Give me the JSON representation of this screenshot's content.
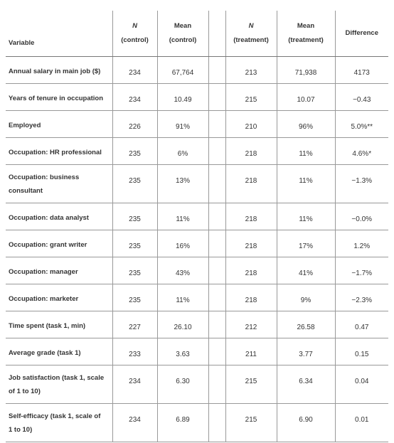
{
  "table": {
    "header": [
      [
        "Variable"
      ],
      [
        "N",
        "(control)"
      ],
      [
        "Mean",
        "(control)"
      ],
      [
        "N",
        "(treatment)"
      ],
      [
        "Mean",
        "(treatment)"
      ],
      [
        "Difference"
      ]
    ],
    "rows": [
      [
        [
          "Annual salary in main job ($)"
        ],
        "234",
        "67,764",
        "213",
        "71,938",
        "4173"
      ],
      [
        [
          "Years of tenure in occupation"
        ],
        "234",
        "10.49",
        "215",
        "10.07",
        "−0.43"
      ],
      [
        [
          "Employed"
        ],
        "226",
        "91%",
        "210",
        "96%",
        "5.0%**"
      ],
      [
        [
          "Occupation: HR professional"
        ],
        "235",
        "6%",
        "218",
        "11%",
        "4.6%*"
      ],
      [
        [
          "Occupation: business",
          "consultant"
        ],
        "235",
        "13%",
        "218",
        "11%",
        "−1.3%"
      ],
      [
        [
          "Occupation: data analyst"
        ],
        "235",
        "11%",
        "218",
        "11%",
        "−0.0%"
      ],
      [
        [
          "Occupation: grant writer"
        ],
        "235",
        "16%",
        "218",
        "17%",
        "1.2%"
      ],
      [
        [
          "Occupation: manager"
        ],
        "235",
        "43%",
        "218",
        "41%",
        "−1.7%"
      ],
      [
        [
          "Occupation: marketer"
        ],
        "235",
        "11%",
        "218",
        "9%",
        "−2.3%"
      ],
      [
        [
          "Time spent (task 1, min)"
        ],
        "227",
        "26.10",
        "212",
        "26.58",
        "0.47"
      ],
      [
        [
          "Average grade (task 1)"
        ],
        "233",
        "3.63",
        "211",
        "3.77",
        "0.15"
      ],
      [
        [
          "Job satisfaction (task 1, scale",
          "of 1 to 10)"
        ],
        "234",
        "6.30",
        "215",
        "6.34",
        "0.04"
      ],
      [
        [
          "Self-efficacy (task 1, scale of",
          "1 to 10)"
        ],
        "234",
        "6.89",
        "215",
        "6.90",
        "0.01"
      ]
    ]
  }
}
